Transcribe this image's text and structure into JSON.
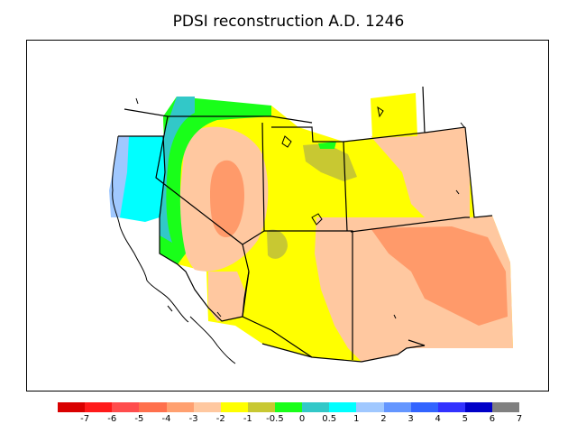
{
  "title": "PDSI reconstruction A.D. 1246",
  "legend": {
    "colors": [
      "#d90000",
      "#ff1a1a",
      "#ff4d4d",
      "#ff704d",
      "#ffa070",
      "#ffc8a0",
      "#ffff00",
      "#c8c832",
      "#19ff19",
      "#32c8c8",
      "#00ffff",
      "#a0c8ff",
      "#6496ff",
      "#3264ff",
      "#3232ff",
      "#0000c8",
      "#808080"
    ],
    "tick_labels": [
      "-7",
      "-6",
      "-5",
      "-4",
      "-3",
      "-2",
      "-1",
      "-0.5",
      "0",
      "0.5",
      "1",
      "2",
      "3",
      "4",
      "5",
      "6",
      "7"
    ]
  },
  "region_colors": {
    "ocean_wet": "#00ffff",
    "coast_wet": "#a0c8ff",
    "teal": "#32c8c8",
    "green": "#19ff19",
    "olive": "#c8c832",
    "yellow": "#ffff00",
    "light_orange": "#ffc8a0",
    "orange": "#ff9a6a"
  }
}
